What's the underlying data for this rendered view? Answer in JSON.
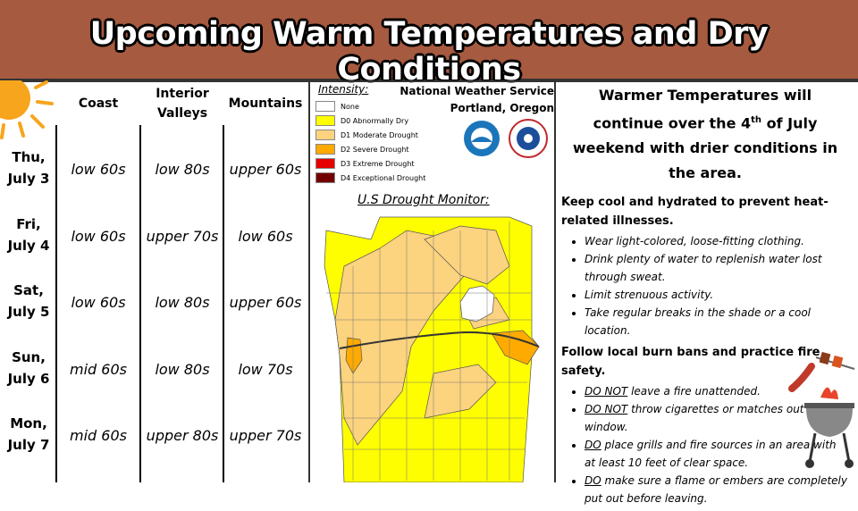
{
  "header": {
    "title": "Upcoming Warm Temperatures and Dry Conditions"
  },
  "table": {
    "columns": [
      "Coast",
      "Interior Valleys",
      "Mountains"
    ],
    "rows": [
      {
        "day": "Thu, July 3",
        "cells": [
          "low 60s",
          "low 80s",
          "upper 60s"
        ]
      },
      {
        "day": "Fri, July 4",
        "cells": [
          "low 60s",
          "upper 70s",
          "low 60s"
        ]
      },
      {
        "day": "Sat, July 5",
        "cells": [
          "low 60s",
          "low 80s",
          "upper 60s"
        ]
      },
      {
        "day": "Sun, July 6",
        "cells": [
          "mid 60s",
          "low 80s",
          "low 70s"
        ]
      },
      {
        "day": "Mon, July 7",
        "cells": [
          "mid 60s",
          "upper 80s",
          "upper 70s"
        ]
      }
    ]
  },
  "legend": {
    "title": "Intensity:",
    "items": [
      "None",
      "D0 Abnormally Dry",
      "D1 Moderate Drought",
      "D2 Severe Drought",
      "D3 Extreme Drought",
      "D4 Exceptional Drought"
    ]
  },
  "nws": {
    "name": "National Weather Service",
    "location": "Portland, Oregon"
  },
  "map": {
    "title": "U.S Drought Monitor:"
  },
  "info": {
    "intro": [
      "Warmer Temperatures will continue over the 4",
      "th",
      " of July weekend with drier conditions in the area."
    ],
    "sections": [
      {
        "heading": "Keep cool and hydrated to prevent heat-related illnesses.",
        "bullets": [
          {
            "text": "Wear light-colored, loose-fitting clothing."
          },
          {
            "text": "Drink plenty of water to replenish water lost through sweat."
          },
          {
            "text": "Limit strenuous activity."
          },
          {
            "text": "Take regular breaks in the shade or a cool location."
          }
        ]
      },
      {
        "heading": "Follow local burn bans and practice fire safety.",
        "bullets": [
          {
            "emphasis": "DO NOT",
            "text": " leave a fire unattended."
          },
          {
            "emphasis": "DO NOT",
            "text": " throw cigarettes or matches out a window."
          },
          {
            "emphasis": "DO",
            "text": " place grills and fire sources in an area with at least 10 feet of clear space."
          },
          {
            "emphasis": "DO",
            "text": " make sure a flame or embers are completely put out before leaving."
          }
        ]
      }
    ]
  }
}
